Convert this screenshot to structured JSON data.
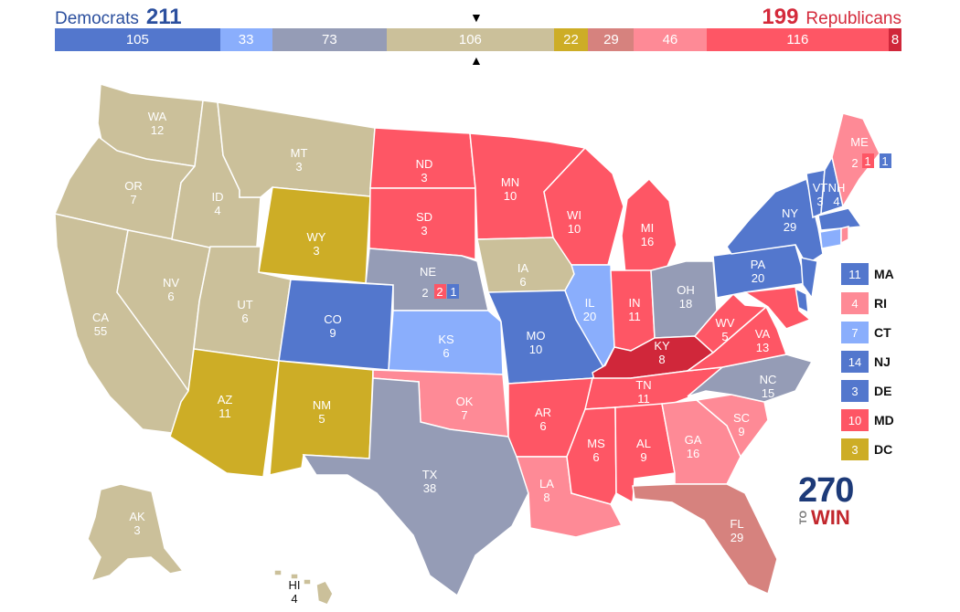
{
  "header": {
    "dem_label": "Democrats",
    "dem_total": "211",
    "rep_total": "199",
    "rep_label": "Republicans"
  },
  "colors": {
    "safe_dem": "#5377cd",
    "likely_dem": "#8aaefc",
    "tossup_dem_lean": "#959cb6",
    "tossup": "#cbc09a",
    "yellow": "#cdad26",
    "tilt_rep": "#d6827e",
    "likely_rep": "#fe8a96",
    "safe_rep": "#fe5665",
    "strong_rep": "#d0273a"
  },
  "tally_bar": [
    {
      "value": "105",
      "color": "#5377cd",
      "share": 105
    },
    {
      "value": "33",
      "color": "#8aaefc",
      "share": 33
    },
    {
      "value": "73",
      "color": "#959cb6",
      "share": 73
    },
    {
      "value": "106",
      "color": "#cbc09a",
      "share": 106
    },
    {
      "value": "22",
      "color": "#cdad26",
      "share": 22
    },
    {
      "value": "29",
      "color": "#d6827e",
      "share": 29
    },
    {
      "value": "46",
      "color": "#fe8a96",
      "share": 46
    },
    {
      "value": "116",
      "color": "#fe5665",
      "share": 116
    },
    {
      "value": "8",
      "color": "#d0273a",
      "share": 8
    }
  ],
  "markers": {
    "top": "▼",
    "bottom": "▲"
  },
  "states": {
    "WA": {
      "abbr": "WA",
      "ev": "12",
      "color": "#cbc09a"
    },
    "OR": {
      "abbr": "OR",
      "ev": "7",
      "color": "#cbc09a"
    },
    "CA": {
      "abbr": "CA",
      "ev": "55",
      "color": "#cbc09a"
    },
    "NV": {
      "abbr": "NV",
      "ev": "6",
      "color": "#cbc09a"
    },
    "ID": {
      "abbr": "ID",
      "ev": "4",
      "color": "#cbc09a"
    },
    "MT": {
      "abbr": "MT",
      "ev": "3",
      "color": "#cbc09a"
    },
    "WY": {
      "abbr": "WY",
      "ev": "3",
      "color": "#cdad26"
    },
    "UT": {
      "abbr": "UT",
      "ev": "6",
      "color": "#cbc09a"
    },
    "AZ": {
      "abbr": "AZ",
      "ev": "11",
      "color": "#cdad26"
    },
    "CO": {
      "abbr": "CO",
      "ev": "9",
      "color": "#5377cd"
    },
    "NM": {
      "abbr": "NM",
      "ev": "5",
      "color": "#cdad26"
    },
    "ND": {
      "abbr": "ND",
      "ev": "3",
      "color": "#fe5665"
    },
    "SD": {
      "abbr": "SD",
      "ev": "3",
      "color": "#fe5665"
    },
    "NE": {
      "abbr": "NE",
      "ev": "2",
      "color": "#959cb6"
    },
    "KS": {
      "abbr": "KS",
      "ev": "6",
      "color": "#8aaefc"
    },
    "OK": {
      "abbr": "OK",
      "ev": "7",
      "color": "#fe8a96"
    },
    "TX": {
      "abbr": "TX",
      "ev": "38",
      "color": "#959cb6"
    },
    "MN": {
      "abbr": "MN",
      "ev": "10",
      "color": "#fe5665"
    },
    "IA": {
      "abbr": "IA",
      "ev": "6",
      "color": "#cbc09a"
    },
    "MO": {
      "abbr": "MO",
      "ev": "10",
      "color": "#5377cd"
    },
    "AR": {
      "abbr": "AR",
      "ev": "6",
      "color": "#fe5665"
    },
    "LA": {
      "abbr": "LA",
      "ev": "8",
      "color": "#fe8a96"
    },
    "WI": {
      "abbr": "WI",
      "ev": "10",
      "color": "#fe5665"
    },
    "IL": {
      "abbr": "IL",
      "ev": "20",
      "color": "#8aaefc"
    },
    "MI": {
      "abbr": "MI",
      "ev": "16",
      "color": "#fe5665"
    },
    "IN": {
      "abbr": "IN",
      "ev": "11",
      "color": "#fe5665"
    },
    "OH": {
      "abbr": "OH",
      "ev": "18",
      "color": "#959cb6"
    },
    "KY": {
      "abbr": "KY",
      "ev": "8",
      "color": "#d0273a"
    },
    "TN": {
      "abbr": "TN",
      "ev": "11",
      "color": "#fe5665"
    },
    "MS": {
      "abbr": "MS",
      "ev": "6",
      "color": "#fe5665"
    },
    "AL": {
      "abbr": "AL",
      "ev": "9",
      "color": "#fe5665"
    },
    "GA": {
      "abbr": "GA",
      "ev": "16",
      "color": "#fe8a96"
    },
    "FL": {
      "abbr": "FL",
      "ev": "29",
      "color": "#d6827e"
    },
    "SC": {
      "abbr": "SC",
      "ev": "9",
      "color": "#fe8a96"
    },
    "NC": {
      "abbr": "NC",
      "ev": "15",
      "color": "#959cb6"
    },
    "VA": {
      "abbr": "VA",
      "ev": "13",
      "color": "#fe5665"
    },
    "WV": {
      "abbr": "WV",
      "ev": "5",
      "color": "#fe5665"
    },
    "PA": {
      "abbr": "PA",
      "ev": "20",
      "color": "#5377cd"
    },
    "NY": {
      "abbr": "NY",
      "ev": "29",
      "color": "#5377cd"
    },
    "VT": {
      "abbr": "VT",
      "ev": "3",
      "color": "#5377cd"
    },
    "NH": {
      "abbr": "NH",
      "ev": "4",
      "color": "#5377cd"
    },
    "ME": {
      "abbr": "ME",
      "ev": "2",
      "color": "#fe8a96"
    },
    "AK": {
      "abbr": "AK",
      "ev": "3",
      "color": "#cbc09a"
    },
    "HI": {
      "abbr": "HI",
      "ev": "4",
      "color": "#cbc09a"
    }
  },
  "districts": {
    "ne_1": {
      "value": "2",
      "color": "#fe5665"
    },
    "ne_2": {
      "value": "1",
      "color": "#5377cd"
    },
    "me_1": {
      "value": "1",
      "color": "#fe5665"
    },
    "me_2": {
      "value": "1",
      "color": "#5377cd"
    }
  },
  "small_states": [
    {
      "ev": "11",
      "abbr": "MA",
      "color": "#5377cd"
    },
    {
      "ev": "4",
      "abbr": "RI",
      "color": "#fe8a96"
    },
    {
      "ev": "7",
      "abbr": "CT",
      "color": "#8aaefc"
    },
    {
      "ev": "14",
      "abbr": "NJ",
      "color": "#5377cd"
    },
    {
      "ev": "3",
      "abbr": "DE",
      "color": "#5377cd"
    },
    {
      "ev": "10",
      "abbr": "MD",
      "color": "#fe5665"
    },
    {
      "ev": "3",
      "abbr": "DC",
      "color": "#cdad26"
    }
  ],
  "logo": {
    "number": "270",
    "to": "TO",
    "win": "WIN"
  }
}
